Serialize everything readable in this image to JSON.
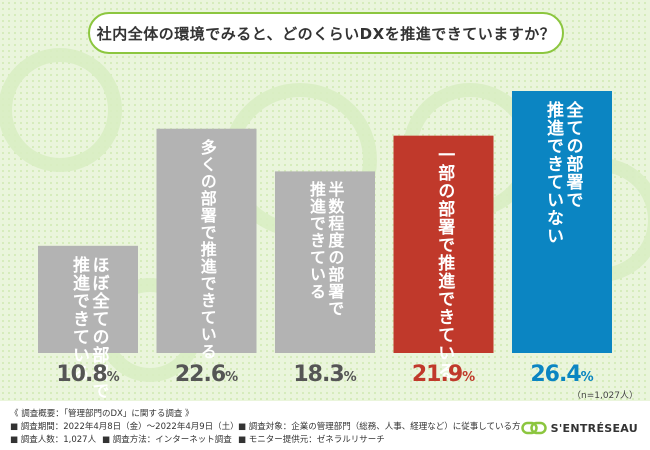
{
  "title": "社内全体の環境でみると、どのくらいDXを推進できていますか？",
  "note": "（n=1,027人）",
  "chart_data": {
    "type": "bar",
    "categories": [
      "ほぼ全ての部署で推進できている",
      "多くの部署で推進できている",
      "半数程度の部署で推進できている",
      "一部の部署で推進できている",
      "全ての部署で推進できていない"
    ],
    "label_lines": [
      [
        "ほぼ全ての部署で",
        "推進できている"
      ],
      [
        "多くの部署で推進できている"
      ],
      [
        "半数程度の部署で",
        "推進できている"
      ],
      [
        "一部の部署で推進できている"
      ],
      [
        "全ての部署で",
        "推進できていない"
      ]
    ],
    "values": [
      10.8,
      22.6,
      18.3,
      21.9,
      26.4
    ],
    "unit": "%",
    "colors": [
      "#b3b3b3",
      "#b3b3b3",
      "#b3b3b3",
      "#c0392b",
      "#0b85c2"
    ],
    "value_colors": [
      "#555555",
      "#555555",
      "#555555",
      "#c0392b",
      "#0b85c2"
    ],
    "ylim": [
      0,
      26.4
    ]
  },
  "footer": {
    "line1": "《 調査概要：「管理部門のDX」に関する調査 》",
    "period": "■ 調査期間：2022年4月8日（金）～2022年4月9日（土）",
    "target": "■ 調査対象：企業の管理部門（総務、人事、経理など）に従事している方",
    "respondents": "■ 調査人数：1,027人",
    "method": "■ 調査方法：インターネット調査",
    "provider": "■ モニター提供元：ゼネラルリサーチ"
  },
  "logo": {
    "text": "S'ENTRÉSEAU",
    "icon": "link-icon",
    "color": "#8cc63f"
  }
}
